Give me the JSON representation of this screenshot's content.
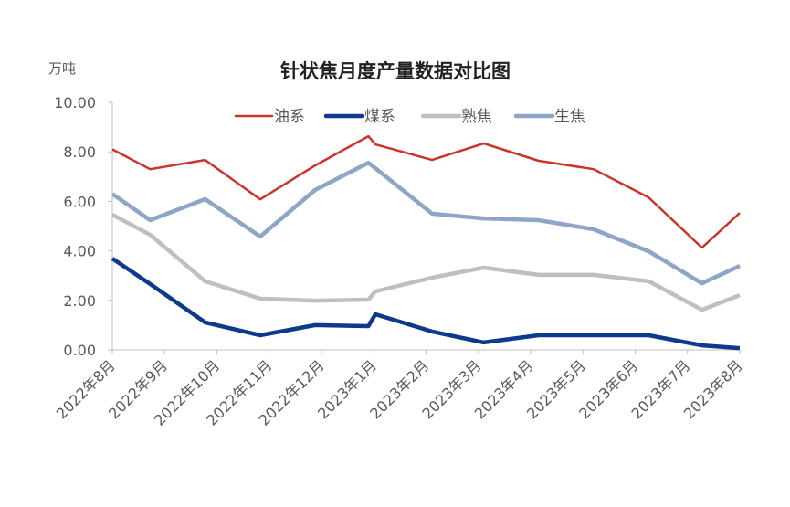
{
  "chart_data": {
    "type": "line",
    "title": "针状焦月度产量数据对比图",
    "ylabel": "万吨",
    "xlabel": "",
    "ylim": [
      0,
      10
    ],
    "yticks": [
      "0.00",
      "2.00",
      "4.00",
      "6.00",
      "8.00",
      "10.00"
    ],
    "xticks": [
      "2022年8月",
      "2022年9月",
      "2022年10月",
      "2022年11月",
      "2022年12月",
      "2023年1月",
      "2023年2月",
      "2023年3月",
      "2023年4月",
      "2023年5月",
      "2023年6月",
      "2023年7月",
      "2023年8月"
    ],
    "x": [
      "2022-08-01",
      "2022-08-23",
      "2022-09-24",
      "2022-10-26",
      "2022-11-27",
      "2022-12-28",
      "2023-01-01",
      "2023-02-03",
      "2023-03-05",
      "2023-04-06",
      "2023-05-08",
      "2023-06-09",
      "2023-07-10",
      "2023-08-01"
    ],
    "grid": false,
    "legend": "top",
    "series": [
      {
        "name": "油系",
        "color": "#c9352b",
        "values": [
          8.1,
          7.3,
          7.67,
          6.08,
          7.45,
          8.63,
          8.3,
          7.67,
          8.34,
          7.64,
          7.3,
          6.16,
          4.13,
          5.53
        ]
      },
      {
        "name": "煤系",
        "color": "#0d3a8a",
        "values": [
          3.69,
          2.66,
          1.11,
          0.59,
          1.0,
          0.96,
          1.44,
          0.74,
          0.3,
          0.59,
          0.59,
          0.59,
          0.18,
          0.07
        ]
      },
      {
        "name": "熟焦",
        "color": "#bfbfbf",
        "values": [
          5.46,
          4.65,
          2.77,
          2.07,
          1.99,
          2.03,
          2.36,
          2.92,
          3.32,
          3.03,
          3.03,
          2.77,
          1.62,
          2.21
        ]
      },
      {
        "name": "生焦",
        "color": "#8ea5c8",
        "values": [
          6.3,
          5.24,
          6.09,
          4.58,
          6.46,
          7.56,
          7.34,
          5.5,
          5.31,
          5.24,
          4.87,
          3.98,
          2.69,
          3.39
        ]
      }
    ]
  }
}
